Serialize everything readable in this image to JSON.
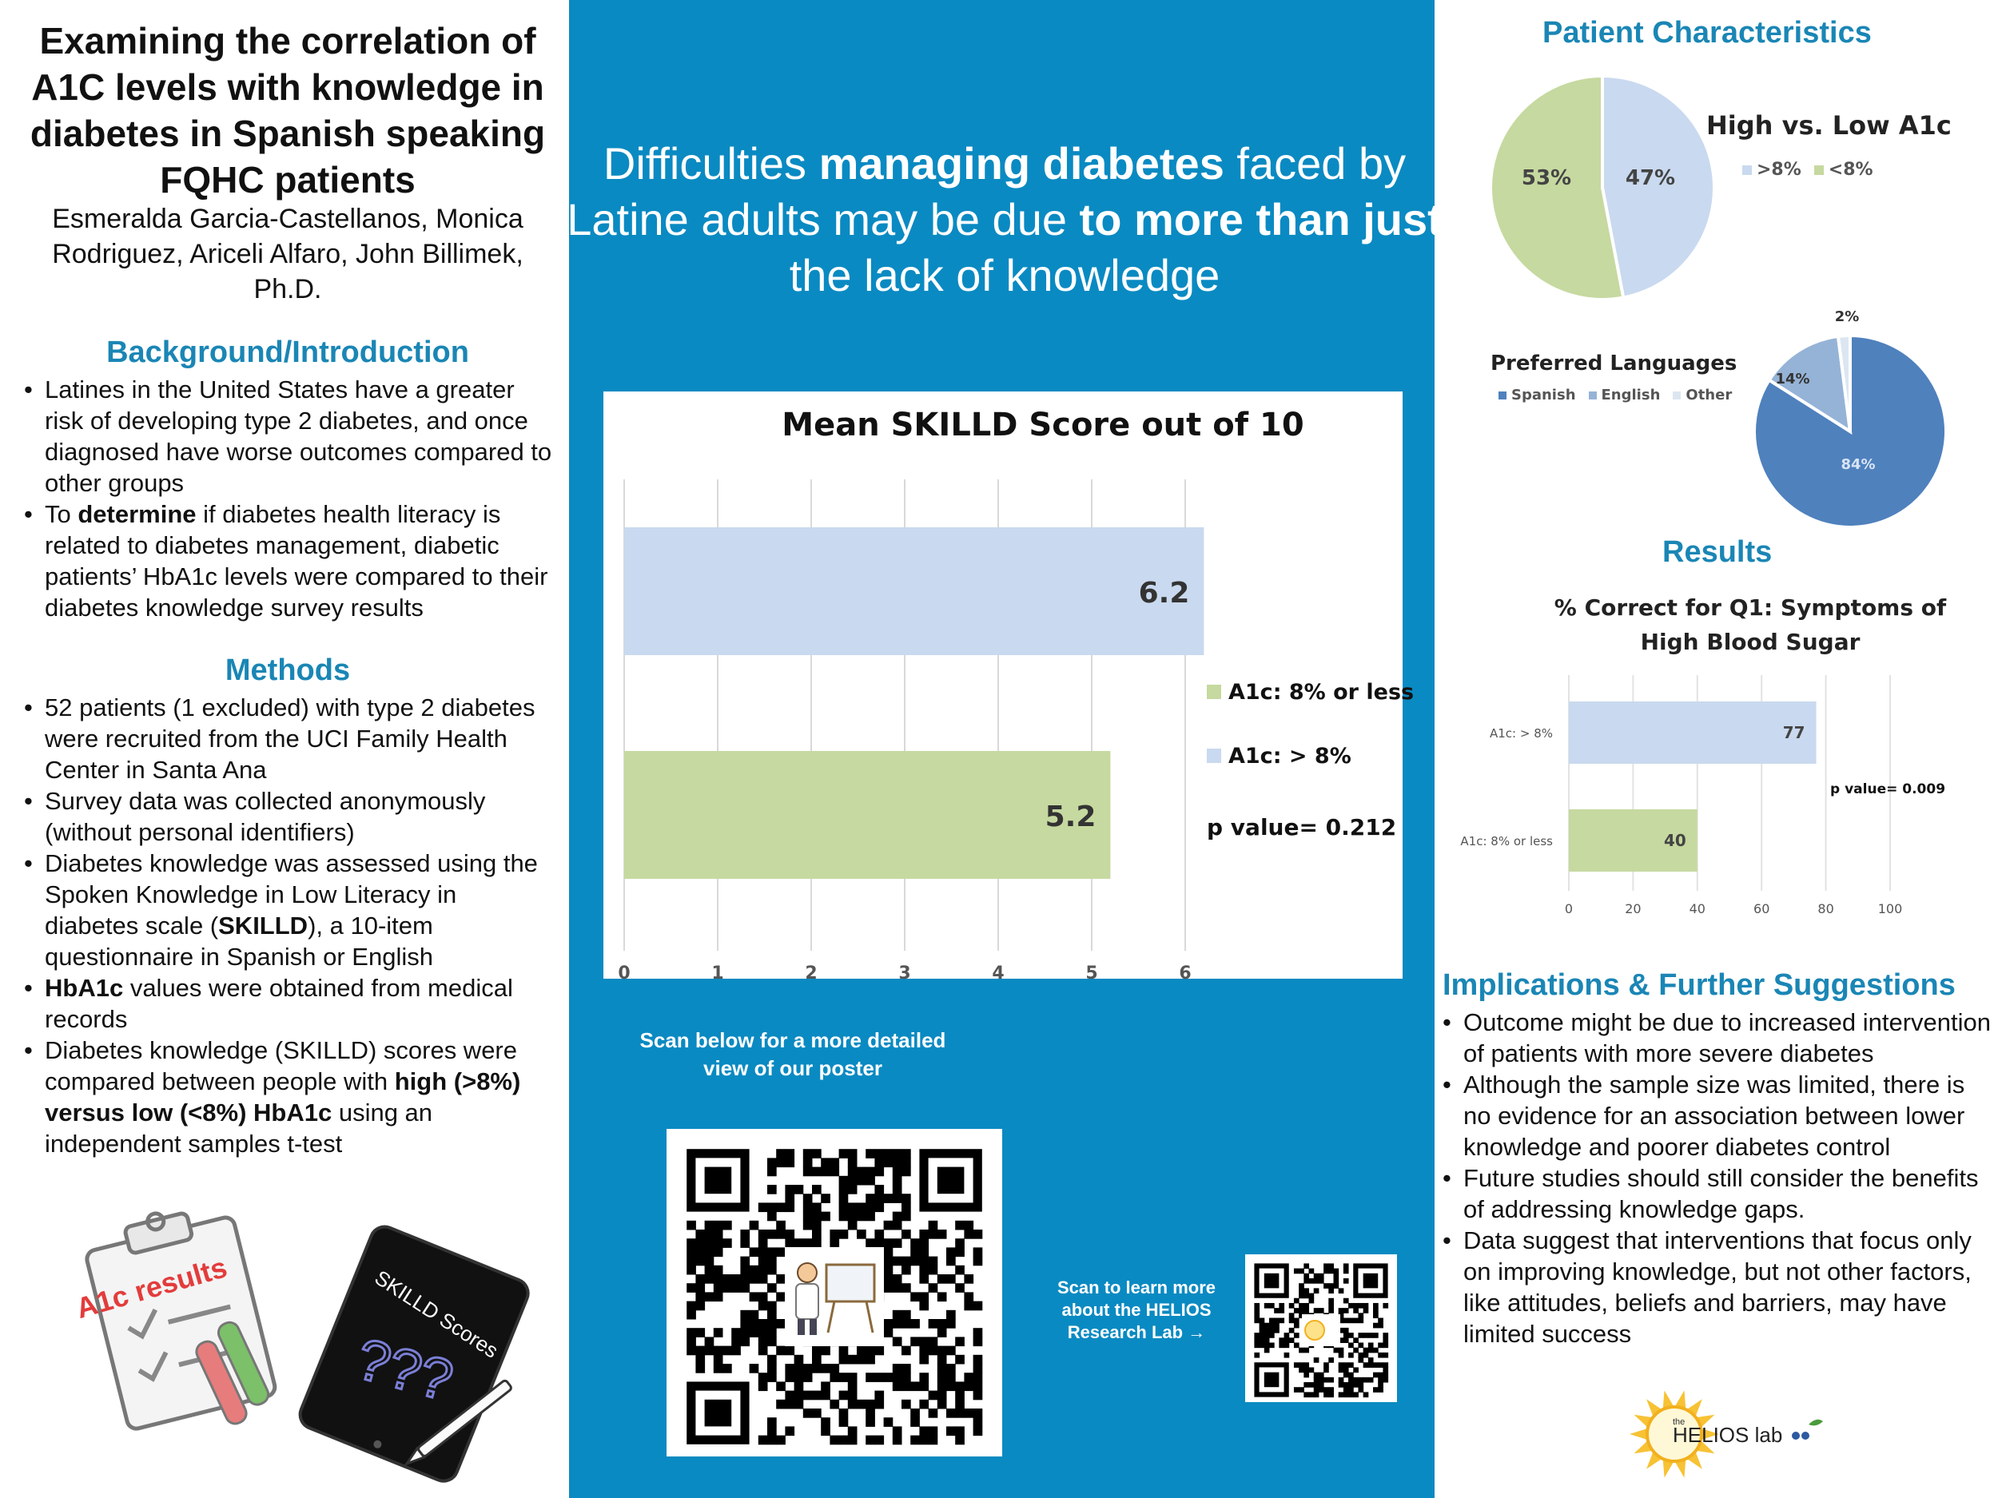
{
  "left": {
    "title": "Examining the correlation of A1C levels with knowledge in diabetes in Spanish speaking FQHC patients",
    "authors": "Esmeralda Garcia-Castellanos, Monica Rodriguez, Ariceli Alfaro, John Billimek, Ph.D.",
    "background": {
      "heading": "Background/Introduction",
      "bullet1": "Latines in the United States have a greater risk of developing type 2 diabetes, and once diagnosed have worse outcomes compared to other groups",
      "bullet2_pre": "To ",
      "bullet2_bold": "determine",
      "bullet2_post": " if diabetes health literacy is related to diabetes management, diabetic patients’ HbA1c levels were compared to their diabetes knowledge survey results"
    },
    "methods": {
      "heading": "Methods",
      "bullet1": "52 patients (1 excluded) with type 2 diabetes were recruited from the UCI Family Health Center in Santa Ana",
      "bullet2": "Survey data was collected anonymously (without personal identifiers)",
      "bullet3_pre": "Diabetes knowledge was assessed using the Spoken Knowledge in Low Literacy in diabetes scale (",
      "bullet3_bold": "SKILLD",
      "bullet3_post": "), a 10-item questionnaire in Spanish or English",
      "bullet4_bold": "HbA1c",
      "bullet4_post": " values were obtained from medical records",
      "bullet5_pre": "Diabetes knowledge (SKILLD) scores were compared between people with ",
      "bullet5_bold": "high (>8%) versus low (<8%) HbA1c",
      "bullet5_post": " using an independent samples t-test"
    },
    "illustrations": {
      "clipboard_label": "A1c results",
      "tablet_label": "SKILLD Scores",
      "tablet_marks": "???"
    }
  },
  "center": {
    "headline_1": "Difficulties ",
    "headline_2": "managing diabetes",
    "headline_3": " faced by Latine adults may be due ",
    "headline_4": "to more than just",
    "headline_5": " the lack of knowledge",
    "qr_caption": "Scan below for a more detailed view of our poster",
    "qr_small_caption": "Scan to learn more about the HELIOS Research Lab →"
  },
  "right": {
    "patient_heading": "Patient Characteristics",
    "results_heading": "Results",
    "implications": {
      "heading": "Implications & Further Suggestions",
      "bullet1": "Outcome might be due to increased intervention of patients with more severe diabetes",
      "bullet2": "Although the sample size was limited, there is no evidence for an association between lower knowledge and poorer diabetes control",
      "bullet3": "Future studies should still consider the benefits of addressing knowledge gaps.",
      "bullet4": "Data suggest that interventions that focus only on improving knowledge, but not other factors, like attitudes, beliefs and barriers, may have limited success"
    },
    "logo_text": "HELIOS lab",
    "logo_small": "the"
  },
  "colors": {
    "center_bg": "#0a8ac2",
    "heading_blue": "#1a86b5",
    "light_blue": "#c9d9ef",
    "light_green": "#c6d9a0",
    "dark_blue": "#4f81bd",
    "mid_blue": "#95b3d7",
    "pale": "#dce6f1"
  },
  "chart_data": [
    {
      "type": "bar",
      "orientation": "horizontal",
      "title": "Mean SKILLD Score out of 10",
      "categories": [
        "A1c: > 8%",
        "A1c: 8% or less"
      ],
      "values": [
        6.2,
        5.2
      ],
      "data_labels": [
        "6.2",
        "5.2"
      ],
      "legend": [
        "A1c: 8% or less",
        "A1c: > 8%"
      ],
      "annotation": "p value= 0.212",
      "xlim": [
        0,
        6
      ],
      "ticks": [
        "0",
        "1",
        "2",
        "3",
        "4",
        "5",
        "6"
      ],
      "grid": true,
      "legend_placement": "right"
    },
    {
      "type": "pie",
      "title": "High vs. Low A1c",
      "slices": [
        {
          "label": ">8%",
          "value": 47,
          "text": "47%"
        },
        {
          "label": "<8%",
          "value": 53,
          "text": "53%"
        }
      ],
      "legend_placement": "right"
    },
    {
      "type": "pie",
      "title": "Preferred Languages",
      "slices": [
        {
          "label": "Spanish",
          "value": 84,
          "text": "84%"
        },
        {
          "label": "English",
          "value": 14,
          "text": "14%"
        },
        {
          "label": "Other",
          "value": 2,
          "text": "2%"
        }
      ],
      "legend_placement": "left"
    },
    {
      "type": "bar",
      "orientation": "horizontal",
      "title": "% Correct for Q1: Symptoms of High Blood Sugar",
      "categories": [
        "A1c: > 8%",
        "A1c: 8% or less"
      ],
      "values": [
        77,
        40
      ],
      "data_labels": [
        "77",
        "40"
      ],
      "annotation": "p value= 0.009",
      "xlim": [
        0,
        100
      ],
      "ticks": [
        "0",
        "20",
        "40",
        "60",
        "80",
        "100"
      ],
      "grid": true
    }
  ]
}
